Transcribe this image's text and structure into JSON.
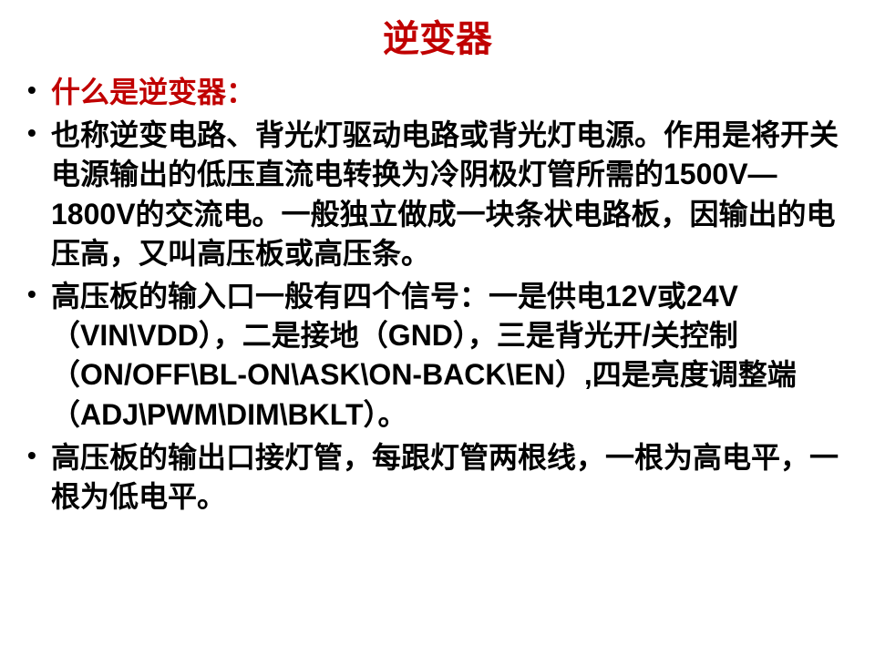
{
  "title": {
    "text": "逆变器",
    "color": "#c00000",
    "fontsize": 40
  },
  "body": {
    "color": "#000000",
    "fontsize": 32,
    "bullet_color": "#000000"
  },
  "bullets": [
    {
      "text": "什么是逆变器：",
      "color": "#c00000"
    },
    {
      "text": "也称逆变电路、背光灯驱动电路或背光灯电源。作用是将开关电源输出的低压直流电转换为冷阴极灯管所需的1500V—1800V的交流电。一般独立做成一块条状电路板，因输出的电压高，又叫高压板或高压条。",
      "color": "#000000"
    },
    {
      "text": "高压板的输入口一般有四个信号：一是供电12V或24V（VIN\\VDD），二是接地（GND），三是背光开/关控制（ON/OFF\\BL-ON\\ASK\\ON-BACK\\EN）,四是亮度调整端（ADJ\\PWM\\DIM\\BKLT）。",
      "color": "#000000"
    },
    {
      "text": "高压板的输出口接灯管，每跟灯管两根线，一根为高电平，一根为低电平。",
      "color": "#000000"
    }
  ]
}
